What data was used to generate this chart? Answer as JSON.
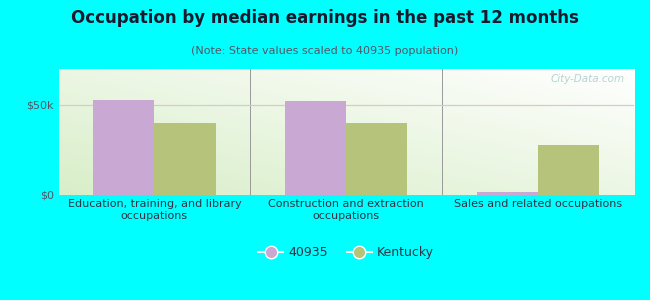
{
  "title": "Occupation by median earnings in the past 12 months",
  "subtitle": "(Note: State values scaled to 40935 population)",
  "categories": [
    "Education, training, and library\noccupations",
    "Construction and extraction\noccupations",
    "Sales and related occupations"
  ],
  "values_40935": [
    53000,
    52000,
    1500
  ],
  "values_kentucky": [
    40000,
    40000,
    28000
  ],
  "color_40935": "#c9a8d4",
  "color_kentucky": "#b5c47a",
  "ylim": [
    0,
    70000
  ],
  "ytick_labels": [
    "$0",
    "$50k"
  ],
  "background_color": "#00ffff",
  "bar_width": 0.32,
  "legend_label_40935": "40935",
  "legend_label_kentucky": "Kentucky",
  "watermark": "City-Data.com",
  "grid_color": "#ddc8c8",
  "title_fontsize": 12,
  "subtitle_fontsize": 8,
  "tick_fontsize": 8,
  "label_fontsize": 8,
  "title_color": "#1a1a2e",
  "subtitle_color": "#555566",
  "tick_color": "#555566",
  "label_color": "#333344"
}
